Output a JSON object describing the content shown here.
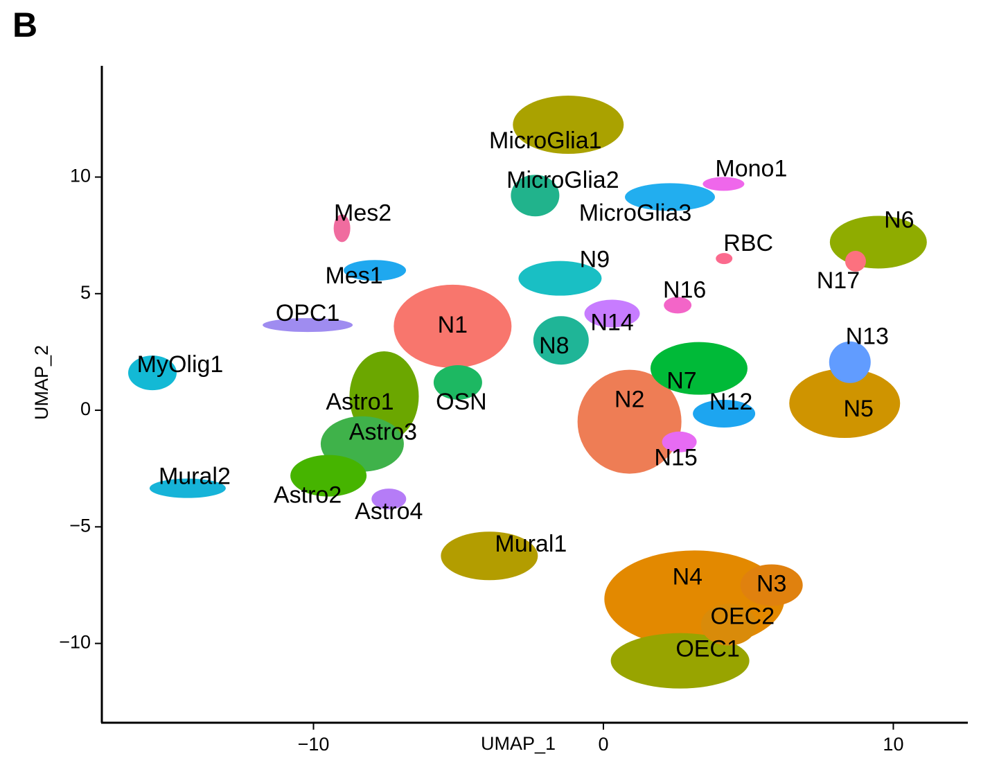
{
  "chart_data": {
    "type": "scatter",
    "panel_label": "B",
    "x_label": "UMAP_1",
    "y_label": "UMAP_2",
    "xlim": [
      -17.3,
      12.57
    ],
    "ylim": [
      -13.4,
      14.77
    ],
    "xticks": [
      {
        "value": -10,
        "label": "−10"
      },
      0,
      10
    ],
    "yticks": [
      {
        "value": -10,
        "label": "−10"
      },
      {
        "value": -5,
        "label": "−5"
      },
      0,
      5,
      10
    ],
    "series": [
      {
        "name": "MicroGlia1",
        "color": "#aaa200",
        "x": -2.0,
        "y": 11.5
      },
      {
        "name": "MicroGlia2",
        "color": "#21b38c",
        "x": -1.4,
        "y": 9.8
      },
      {
        "name": "MicroGlia3",
        "color": "#22aeef",
        "x": 1.1,
        "y": 8.4
      },
      {
        "name": "Mono1",
        "color": "#ef67eb",
        "x": 5.1,
        "y": 10.3
      },
      {
        "name": "Mes2",
        "color": "#f06c9f",
        "x": -8.3,
        "y": 8.4
      },
      {
        "name": "Mes1",
        "color": "#1fa8ef",
        "x": -8.6,
        "y": 5.7
      },
      {
        "name": "OPC1",
        "color": "#9f8cf0",
        "x": -10.2,
        "y": 4.1
      },
      {
        "name": "MyOlig1",
        "color": "#13b9d5",
        "x": -14.6,
        "y": 1.9
      },
      {
        "name": "N1",
        "color": "#f8766d",
        "x": -5.2,
        "y": 3.6
      },
      {
        "name": "N9",
        "color": "#19bfc4",
        "x": -0.3,
        "y": 6.4
      },
      {
        "name": "N8",
        "color": "#1fb597",
        "x": -1.7,
        "y": 2.7
      },
      {
        "name": "N14",
        "color": "#c77cff",
        "x": 0.3,
        "y": 3.7
      },
      {
        "name": "N16",
        "color": "#f365c8",
        "x": 2.8,
        "y": 5.1
      },
      {
        "name": "RBC",
        "color": "#fb6a8e",
        "x": 5.0,
        "y": 7.1
      },
      {
        "name": "N6",
        "color": "#8fac00",
        "x": 10.2,
        "y": 8.1
      },
      {
        "name": "N17",
        "color": "#fc717f",
        "x": 8.1,
        "y": 5.5
      },
      {
        "name": "N13",
        "color": "#619cff",
        "x": 9.1,
        "y": 3.1
      },
      {
        "name": "N5",
        "color": "#cf9400",
        "x": 8.8,
        "y": 0
      },
      {
        "name": "N7",
        "color": "#00ba38",
        "x": 2.7,
        "y": 1.2
      },
      {
        "name": "N12",
        "color": "#1da5f0",
        "x": 4.4,
        "y": 0.3
      },
      {
        "name": "N2",
        "color": "#ee7d55",
        "x": 0.9,
        "y": 0.4
      },
      {
        "name": "N15",
        "color": "#e76bf3",
        "x": 2.5,
        "y": -2.1
      },
      {
        "name": "OSN",
        "color": "#1db862",
        "x": -4.9,
        "y": 0.3
      },
      {
        "name": "Astro1",
        "color": "#6ba700",
        "x": -8.4,
        "y": 0.3
      },
      {
        "name": "Astro3",
        "color": "#3fb24a",
        "x": -7.6,
        "y": -1.0
      },
      {
        "name": "Astro2",
        "color": "#46b400",
        "x": -10.2,
        "y": -3.7
      },
      {
        "name": "Astro4",
        "color": "#b57cf7",
        "x": -7.4,
        "y": -4.4
      },
      {
        "name": "Mural2",
        "color": "#16b3d8",
        "x": -14.1,
        "y": -2.9
      },
      {
        "name": "Mural1",
        "color": "#b39d00",
        "x": -2.5,
        "y": -5.8
      },
      {
        "name": "N4",
        "color": "#e38900",
        "x": 2.9,
        "y": -7.2
      },
      {
        "name": "N3",
        "color": "#e0810e",
        "x": 5.8,
        "y": -7.5
      },
      {
        "name": "OEC2",
        "color": "#d98b0a",
        "x": 4.8,
        "y": -8.9
      },
      {
        "name": "OEC1",
        "color": "#98a400",
        "x": 3.6,
        "y": -10.3
      }
    ]
  }
}
